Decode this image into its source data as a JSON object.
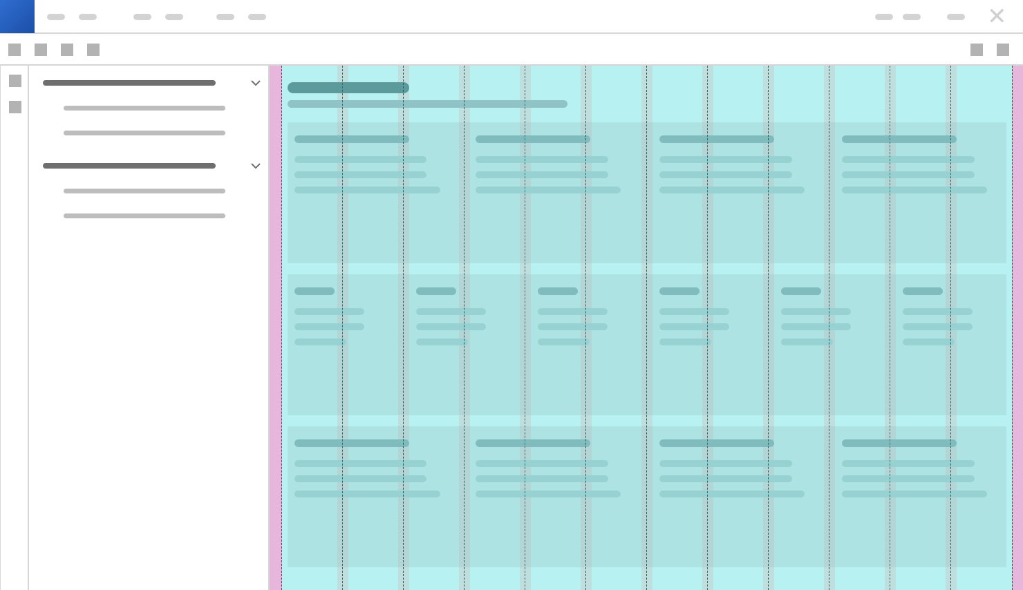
{
  "window": {
    "logo_icon": "app-logo-icon",
    "close_icon": "close-icon",
    "close_glyph": "✕",
    "accent": "#2f6ed0"
  },
  "toolbar": {
    "left_icons": [
      "toolbar-icon-1",
      "toolbar-icon-2",
      "toolbar-icon-3",
      "toolbar-icon-4"
    ],
    "right_icons": [
      "toolbar-icon-5",
      "toolbar-icon-6"
    ]
  },
  "rail": {
    "icons": [
      "rail-icon-1",
      "rail-icon-2"
    ]
  },
  "navigation": {
    "groups": [
      {
        "expanded": true,
        "children_count": 2
      },
      {
        "expanded": true,
        "children_count": 2
      }
    ]
  },
  "layout_grid": {
    "columns": 12,
    "margin_color": "#e6b6dc",
    "column_color": "#b8f1f1",
    "gutter_color": "#d9d9d9"
  }
}
